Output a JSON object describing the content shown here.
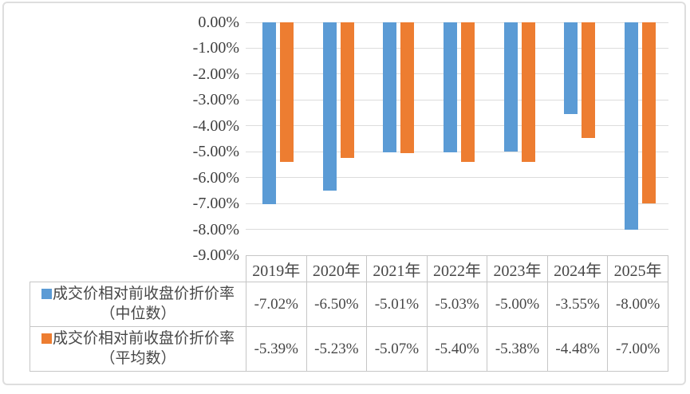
{
  "chart_data": {
    "type": "bar",
    "title": "",
    "xlabel": "",
    "ylabel": "",
    "categories": [
      "2019年",
      "2020年",
      "2021年",
      "2022年",
      "2023年",
      "2024年",
      "2025年"
    ],
    "series": [
      {
        "name": "成交价相对前收盘价折价率（中位数）",
        "name_lines": [
          "成交价相对前收盘价折价率",
          "（中位数）"
        ],
        "color": "#5B9BD5",
        "values": [
          -7.02,
          -6.5,
          -5.01,
          -5.03,
          -5.0,
          -3.55,
          -8.0
        ]
      },
      {
        "name": "成交价相对前收盘价折价率（平均数）",
        "name_lines": [
          "成交价相对前收盘价折价率",
          "（平均数）"
        ],
        "color": "#ED7D31",
        "values": [
          -5.39,
          -5.23,
          -5.07,
          -5.4,
          -5.38,
          -4.48,
          -7.0
        ]
      }
    ],
    "yticks": [
      "0.00%",
      "-1.00%",
      "-2.00%",
      "-3.00%",
      "-4.00%",
      "-5.00%",
      "-6.00%",
      "-7.00%",
      "-8.00%",
      "-9.00%"
    ],
    "ylim": [
      0,
      -9
    ],
    "value_suffix": "%",
    "grid": true,
    "legend_position": "table rows below chart"
  },
  "style": {
    "grid_color": "#dcdcdc",
    "table_border_color": "#c6c6c6",
    "frame_border_color": "#dedede",
    "text_color": "#474747"
  }
}
